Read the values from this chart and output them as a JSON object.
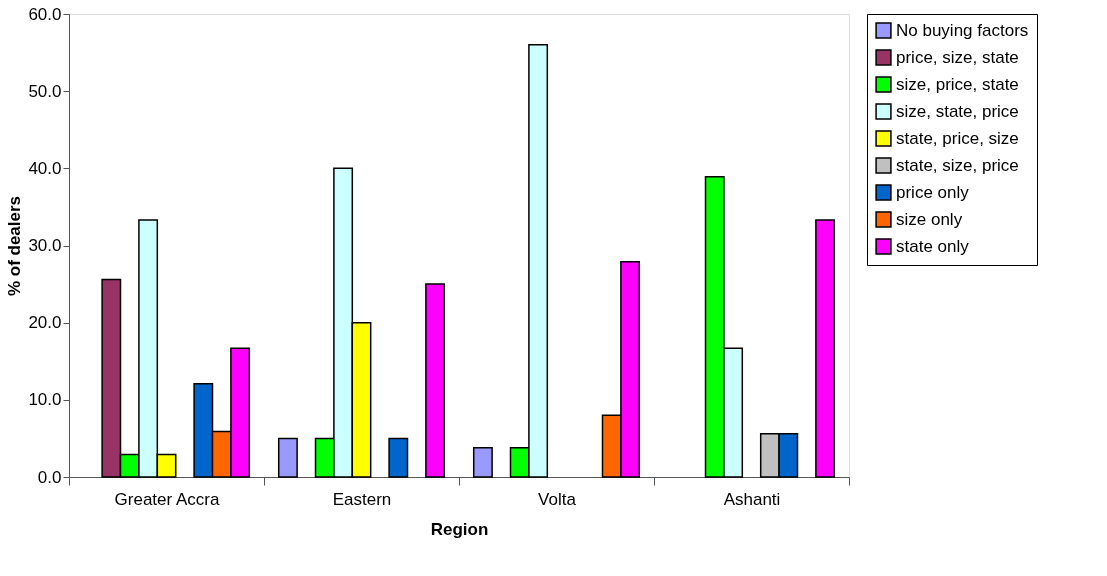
{
  "chart_data": {
    "type": "bar",
    "xlabel": "Region",
    "ylabel": "% of dealers",
    "categories": [
      "Greater Accra",
      "Eastern",
      "Volta",
      "Ashanti"
    ],
    "ylim": [
      0,
      60
    ],
    "yticks": [
      {
        "value": 0,
        "label": "0.0"
      },
      {
        "value": 10,
        "label": "10.0"
      },
      {
        "value": 20,
        "label": "20.0"
      },
      {
        "value": 30,
        "label": "30.0"
      },
      {
        "value": 40,
        "label": "40.0"
      },
      {
        "value": 50,
        "label": "50.0"
      },
      {
        "value": 60,
        "label": "60.0"
      }
    ],
    "grid": false,
    "legend": "right",
    "series": [
      {
        "name": "No buying factors",
        "color": "#9999ff",
        "values": [
          null,
          5.0,
          3.8,
          null
        ]
      },
      {
        "name": "price, size, state",
        "color": "#993366",
        "values": [
          25.6,
          null,
          null,
          null
        ]
      },
      {
        "name": "size, price, state",
        "color": "#00ff00",
        "values": [
          2.9,
          5.0,
          3.8,
          38.9
        ]
      },
      {
        "name": "size, state, price",
        "color": "#ccffff",
        "values": [
          33.3,
          40.0,
          56.0,
          16.7
        ]
      },
      {
        "name": "state, price, size",
        "color": "#ffff00",
        "values": [
          2.9,
          20.0,
          null,
          null
        ]
      },
      {
        "name": "state, size, price",
        "color": "#c0c0c0",
        "values": [
          null,
          null,
          null,
          5.6
        ]
      },
      {
        "name": "price only",
        "color": "#0066cc",
        "values": [
          12.1,
          5.0,
          null,
          5.6
        ]
      },
      {
        "name": "size only",
        "color": "#ff6600",
        "values": [
          5.9,
          null,
          8.0,
          null
        ]
      },
      {
        "name": "state only",
        "color": "#ff00ff",
        "values": [
          16.7,
          25.0,
          27.9,
          33.3
        ]
      }
    ]
  }
}
